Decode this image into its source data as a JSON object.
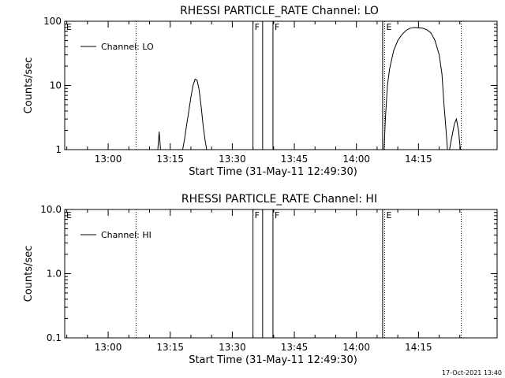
{
  "footer": {
    "timestamp": "17-Oct-2021 13:40"
  },
  "chart_data": [
    {
      "type": "line",
      "title": "RHESSI PARTICLE_RATE Channel: LO",
      "xlabel": "Start Time (31-May-11 12:49:30)",
      "ylabel": "Counts/sec",
      "yscale": "log",
      "ylim": [
        1,
        100
      ],
      "xlim": [
        "12:49:30",
        "14:34:00"
      ],
      "grid": false,
      "legend_position": "top-left",
      "x_ticks": [
        "13:00",
        "13:15",
        "13:30",
        "13:45",
        "14:00",
        "14:15"
      ],
      "y_ticks": [
        "1",
        "10",
        "100"
      ],
      "series": [
        {
          "name": "Channel: LO",
          "color": "#000000",
          "points": [
            [
              "13:12:00",
              1.0
            ],
            [
              "13:12:20",
              1.9
            ],
            [
              "13:12:40",
              1.0
            ],
            [
              "13:18:00",
              1.0
            ],
            [
              "13:18:30",
              1.5
            ],
            [
              "13:19:00",
              2.5
            ],
            [
              "13:19:30",
              4.0
            ],
            [
              "13:20:00",
              6.5
            ],
            [
              "13:20:30",
              10.0
            ],
            [
              "13:21:00",
              12.5
            ],
            [
              "13:21:30",
              12.0
            ],
            [
              "13:22:00",
              8.5
            ],
            [
              "13:22:30",
              4.5
            ],
            [
              "13:23:00",
              2.2
            ],
            [
              "13:23:30",
              1.3
            ],
            [
              "13:23:50",
              1.0
            ],
            null,
            [
              "14:06:40",
              1.0
            ],
            [
              "14:07:00",
              3.0
            ],
            [
              "14:07:30",
              10.0
            ],
            [
              "14:08:00",
              18.0
            ],
            [
              "14:09:00",
              35.0
            ],
            [
              "14:10:00",
              50.0
            ],
            [
              "14:11:00",
              62.0
            ],
            [
              "14:12:00",
              72.0
            ],
            [
              "14:13:00",
              78.0
            ],
            [
              "14:14:00",
              80.0
            ],
            [
              "14:15:00",
              79.0
            ],
            [
              "14:16:00",
              78.0
            ],
            [
              "14:17:00",
              74.0
            ],
            [
              "14:18:00",
              66.0
            ],
            [
              "14:19:00",
              50.0
            ],
            [
              "14:20:00",
              30.0
            ],
            [
              "14:20:40",
              15.0
            ],
            [
              "14:21:10",
              5.0
            ],
            [
              "14:21:40",
              2.0
            ],
            [
              "14:22:00",
              1.0
            ],
            null,
            [
              "14:22:30",
              1.0
            ],
            [
              "14:23:00",
              1.5
            ],
            [
              "14:23:40",
              2.5
            ],
            [
              "14:24:10",
              3.0
            ],
            [
              "14:24:40",
              2.0
            ],
            [
              "14:25:00",
              1.2
            ],
            [
              "14:25:10",
              1.0
            ]
          ]
        }
      ],
      "annotations": [
        {
          "label": "E",
          "time": "12:49:30",
          "line": "none"
        },
        {
          "label": "",
          "time": "13:06:45",
          "line": "dotted"
        },
        {
          "label": "F",
          "time": "13:35:00",
          "line": "solid"
        },
        {
          "label": "",
          "time": "13:37:20",
          "line": "solid"
        },
        {
          "label": "F",
          "time": "13:39:50",
          "line": "solid"
        },
        {
          "label": "",
          "time": "14:06:20",
          "line": "solid"
        },
        {
          "label": "E",
          "time": "14:06:50",
          "line": "dotted"
        },
        {
          "label": "",
          "time": "14:25:20",
          "line": "dotted"
        }
      ]
    },
    {
      "type": "line",
      "title": "RHESSI PARTICLE_RATE Channel: HI",
      "xlabel": "Start Time (31-May-11 12:49:30)",
      "ylabel": "Counts/sec",
      "yscale": "log",
      "ylim": [
        0.1,
        10
      ],
      "xlim": [
        "12:49:30",
        "14:34:00"
      ],
      "grid": false,
      "legend_position": "top-left",
      "x_ticks": [
        "13:00",
        "13:15",
        "13:30",
        "13:45",
        "14:00",
        "14:15"
      ],
      "y_ticks": [
        "0.1",
        "1.0",
        "10.0"
      ],
      "series": [
        {
          "name": "Channel: HI",
          "color": "#000000",
          "points": []
        }
      ],
      "annotations": [
        {
          "label": "E",
          "time": "12:49:30",
          "line": "none"
        },
        {
          "label": "",
          "time": "13:06:45",
          "line": "dotted"
        },
        {
          "label": "F",
          "time": "13:35:00",
          "line": "solid"
        },
        {
          "label": "",
          "time": "13:37:20",
          "line": "solid"
        },
        {
          "label": "F",
          "time": "13:39:50",
          "line": "solid"
        },
        {
          "label": "",
          "time": "14:06:20",
          "line": "solid"
        },
        {
          "label": "E",
          "time": "14:06:50",
          "line": "dotted"
        },
        {
          "label": "",
          "time": "14:25:20",
          "line": "dotted"
        }
      ]
    }
  ]
}
